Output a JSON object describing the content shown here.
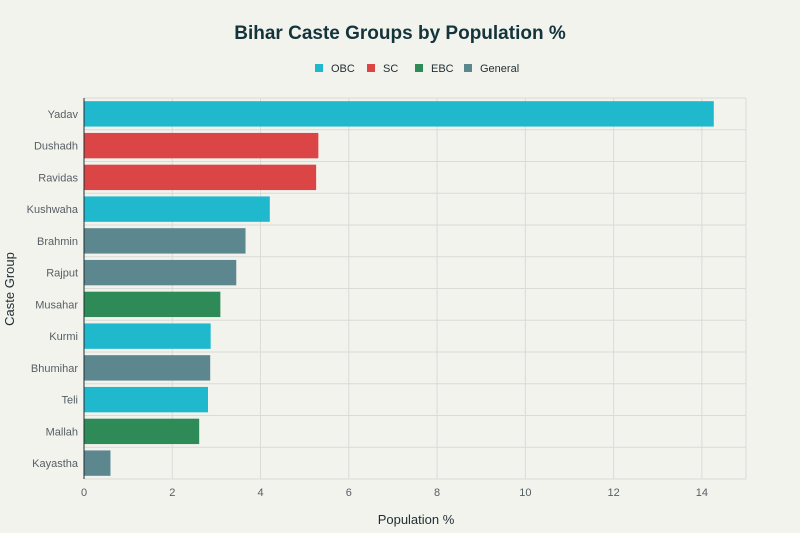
{
  "chart_data": {
    "type": "bar",
    "orientation": "horizontal",
    "title": "Bihar Caste Groups by Population %",
    "xlabel": "Population %",
    "ylabel": "Caste Group",
    "xlim": [
      0,
      15
    ],
    "xticks": [
      0,
      2,
      4,
      6,
      8,
      10,
      12,
      14
    ],
    "grid": true,
    "legend_position": "top-center",
    "legend": [
      {
        "name": "OBC",
        "color": "#1fb8cd"
      },
      {
        "name": "SC",
        "color": "#db4545"
      },
      {
        "name": "EBC",
        "color": "#2e8b57"
      },
      {
        "name": "General",
        "color": "#5d878f"
      }
    ],
    "bars": [
      {
        "category": "Yadav",
        "value": 14.27,
        "group": "OBC"
      },
      {
        "category": "Dushadh",
        "value": 5.31,
        "group": "SC"
      },
      {
        "category": "Ravidas",
        "value": 5.26,
        "group": "SC"
      },
      {
        "category": "Kushwaha",
        "value": 4.21,
        "group": "OBC"
      },
      {
        "category": "Brahmin",
        "value": 3.66,
        "group": "General"
      },
      {
        "category": "Rajput",
        "value": 3.45,
        "group": "General"
      },
      {
        "category": "Musahar",
        "value": 3.09,
        "group": "EBC"
      },
      {
        "category": "Kurmi",
        "value": 2.87,
        "group": "OBC"
      },
      {
        "category": "Bhumihar",
        "value": 2.86,
        "group": "General"
      },
      {
        "category": "Teli",
        "value": 2.81,
        "group": "OBC"
      },
      {
        "category": "Mallah",
        "value": 2.61,
        "group": "EBC"
      },
      {
        "category": "Kayastha",
        "value": 0.6,
        "group": "General"
      }
    ]
  }
}
